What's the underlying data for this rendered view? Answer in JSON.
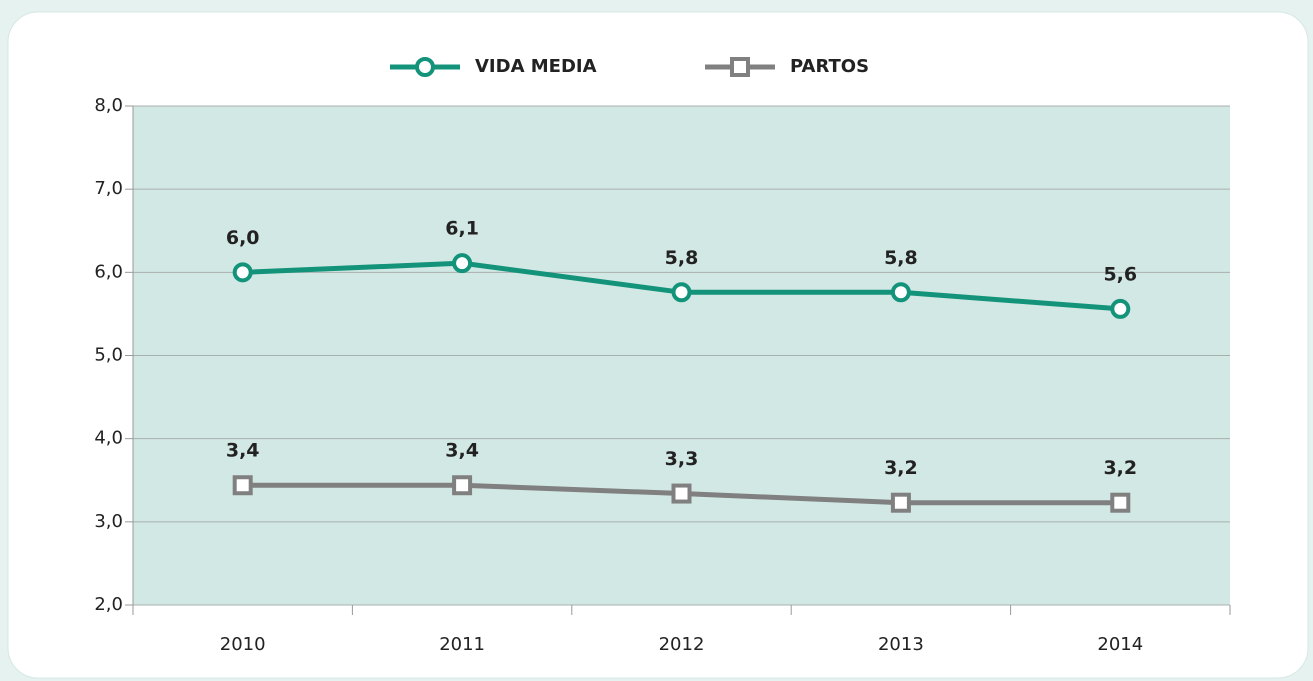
{
  "chart_data": {
    "type": "line",
    "categories": [
      "2010",
      "2011",
      "2012",
      "2013",
      "2014"
    ],
    "series": [
      {
        "name": "VIDA MEDIA",
        "color": "#14937b",
        "marker": "circle",
        "values": [
          6.0,
          6.11,
          5.76,
          5.76,
          5.56
        ],
        "value_labels": [
          "6,0",
          "6,1",
          "5,8",
          "5,8",
          "5,6"
        ]
      },
      {
        "name": "PARTOS",
        "color": "#808080",
        "marker": "square",
        "values": [
          3.44,
          3.44,
          3.34,
          3.23,
          3.23
        ],
        "value_labels": [
          "3,4",
          "3,4",
          "3,3",
          "3,2",
          "3,2"
        ]
      }
    ],
    "ylim": [
      2,
      8
    ],
    "yticks": [
      {
        "value": 2,
        "label": "2,0"
      },
      {
        "value": 3,
        "label": "3,0"
      },
      {
        "value": 4,
        "label": "4,0"
      },
      {
        "value": 5,
        "label": "5,0"
      },
      {
        "value": 6,
        "label": "6,0"
      },
      {
        "value": 7,
        "label": "7,0"
      },
      {
        "value": 8,
        "label": "8,0"
      }
    ],
    "grid": true,
    "legend": "top",
    "plot_background": "#d2e8e4"
  }
}
